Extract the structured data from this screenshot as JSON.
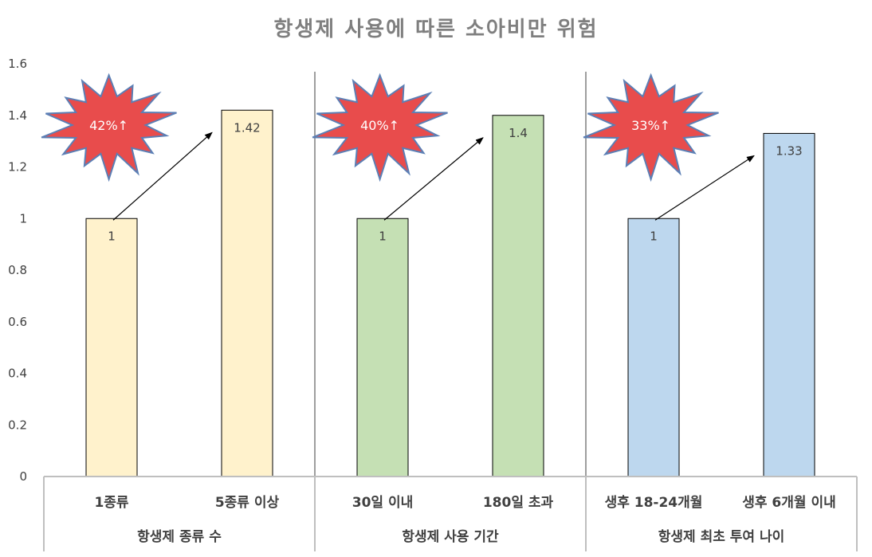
{
  "chart_data": {
    "type": "bar",
    "title": "항생제 사용에 따른 소아비만 위험",
    "ylim": [
      0,
      1.6
    ],
    "yticks": [
      "0",
      "0.2",
      "0.4",
      "0.6",
      "0.8",
      "1",
      "1.2",
      "1.4",
      "1.6"
    ],
    "grid": false,
    "groups": [
      {
        "label": "항생제 종류 수",
        "categories": [
          "1종류",
          "5종류 이상"
        ],
        "values": [
          1,
          1.42
        ],
        "value_labels": [
          "1",
          "1.42"
        ],
        "color": "#fff2cc",
        "annotation": "42%↑"
      },
      {
        "label": "항생제 사용 기간",
        "categories": [
          "30일 이내",
          "180일 초과"
        ],
        "values": [
          1,
          1.4
        ],
        "value_labels": [
          "1",
          "1.4"
        ],
        "color": "#c5e0b4",
        "annotation": "40%↑"
      },
      {
        "label": "항생제 최초 투여 나이",
        "categories": [
          "생후 18-24개월",
          "생후 6개월 이내"
        ],
        "values": [
          1,
          1.33
        ],
        "value_labels": [
          "1",
          "1.33"
        ],
        "color": "#bdd7ee",
        "annotation": "33%↑"
      }
    ],
    "colors": {
      "bar_outline": "#000000",
      "axis": "#bfbfbf",
      "divider": "#7f7f7f",
      "burst_fill": "#e84c4c",
      "burst_outline": "#5b7fb5"
    }
  }
}
